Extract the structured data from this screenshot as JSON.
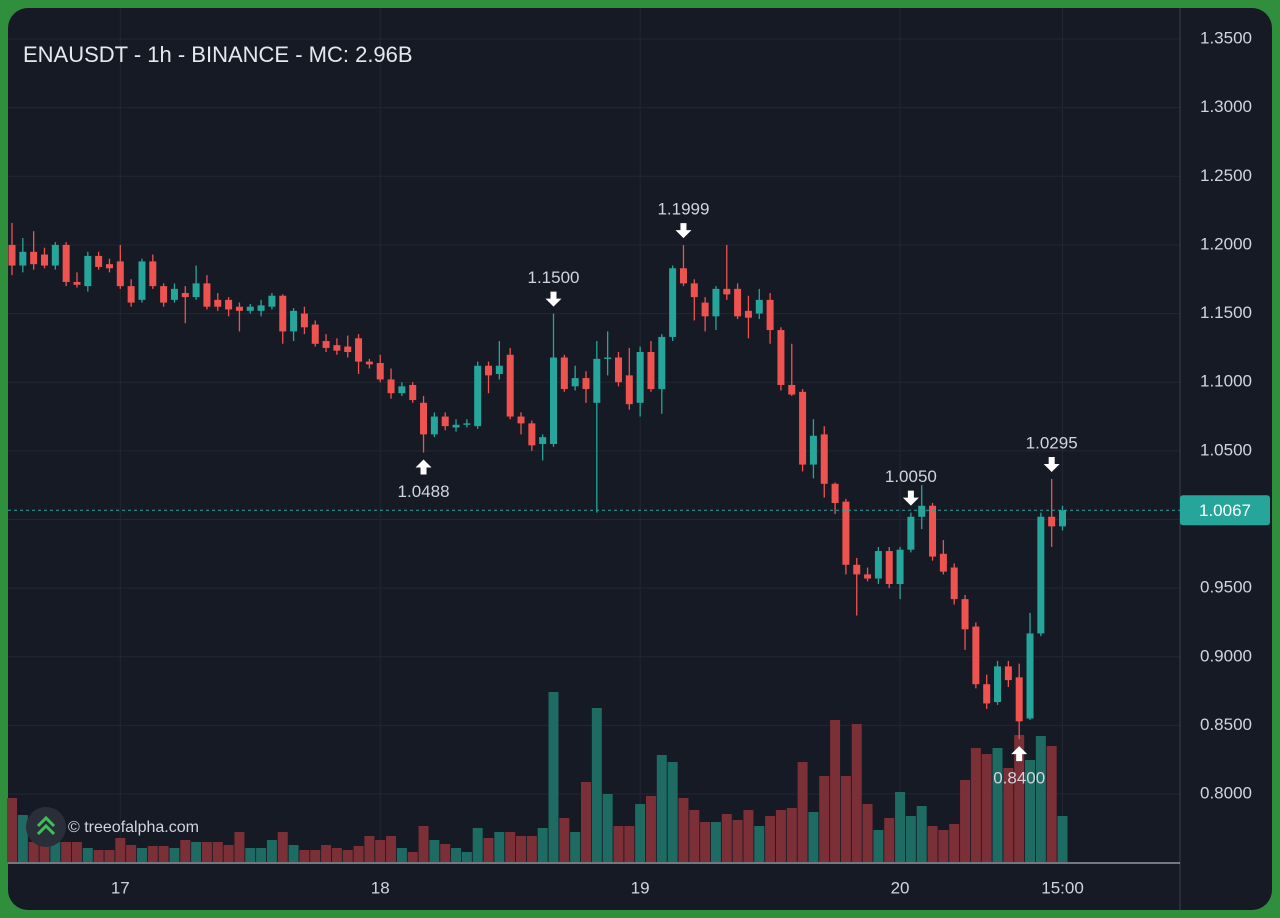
{
  "chart_data": {
    "type": "candlestick",
    "title": "ENAUSDT - 1h - BINANCE - MC: 2.96B",
    "watermark": "© treeofalpha.com",
    "categories": [
      null,
      null,
      null,
      null,
      null,
      null,
      null,
      null,
      null,
      null,
      "17",
      null,
      null,
      null,
      null,
      null,
      null,
      null,
      null,
      null,
      null,
      null,
      null,
      null,
      null,
      null,
      null,
      null,
      null,
      null,
      null,
      null,
      null,
      null,
      "18",
      null,
      null,
      null,
      null,
      null,
      null,
      null,
      null,
      null,
      null,
      null,
      null,
      null,
      null,
      null,
      null,
      null,
      null,
      null,
      null,
      null,
      null,
      null,
      "19",
      null,
      null,
      null,
      null,
      null,
      null,
      null,
      null,
      null,
      null,
      null,
      null,
      null,
      null,
      null,
      null,
      null,
      null,
      null,
      null,
      null,
      null,
      null,
      "20",
      null,
      null,
      null,
      null,
      null,
      null,
      null,
      null,
      null,
      null,
      null,
      null,
      null,
      null,
      "15:00"
    ],
    "open": [
      1.2,
      1.185,
      1.195,
      1.193,
      1.185,
      1.2,
      1.173,
      1.17,
      1.192,
      1.186,
      1.188,
      1.17,
      1.16,
      1.188,
      1.17,
      1.16,
      1.165,
      1.162,
      1.172,
      1.16,
      1.16,
      1.155,
      1.152,
      1.152,
      1.155,
      1.163,
      1.137,
      1.15,
      1.142,
      1.13,
      1.127,
      1.126,
      1.132,
      1.115,
      1.114,
      1.102,
      1.092,
      1.098,
      1.085,
      1.062,
      1.075,
      1.067,
      1.069,
      1.068,
      1.112,
      1.106,
      1.12,
      1.075,
      1.07,
      1.055,
      1.055,
      1.118,
      1.097,
      1.103,
      1.085,
      1.117,
      1.118,
      1.105,
      1.085,
      1.122,
      1.095,
      1.133,
      1.183,
      1.172,
      1.158,
      1.148,
      1.168,
      1.168,
      1.152,
      1.15,
      1.16,
      1.138,
      1.098,
      1.093,
      1.04,
      1.062,
      1.026,
      1.013,
      0.967,
      0.96,
      0.957,
      0.977,
      0.953,
      0.978,
      1.002,
      1.01,
      0.975,
      0.965,
      0.942,
      0.922,
      0.88,
      0.867,
      0.893,
      0.885,
      0.855,
      0.917,
      1.002,
      0.995
    ],
    "high": [
      1.216,
      1.205,
      1.21,
      1.198,
      1.202,
      1.202,
      1.18,
      1.195,
      1.195,
      1.19,
      1.2,
      1.175,
      1.19,
      1.193,
      1.172,
      1.172,
      1.17,
      1.185,
      1.178,
      1.165,
      1.162,
      1.158,
      1.157,
      1.16,
      1.165,
      1.164,
      1.154,
      1.155,
      1.145,
      1.135,
      1.132,
      1.134,
      1.135,
      1.117,
      1.12,
      1.11,
      1.1,
      1.1,
      1.09,
      1.078,
      1.078,
      1.073,
      1.073,
      1.115,
      1.115,
      1.13,
      1.125,
      1.078,
      1.072,
      1.062,
      1.15,
      1.12,
      1.112,
      1.108,
      1.13,
      1.137,
      1.122,
      1.125,
      1.126,
      1.13,
      1.135,
      1.185,
      1.1999,
      1.175,
      1.162,
      1.17,
      1.2,
      1.172,
      1.163,
      1.168,
      1.165,
      1.14,
      1.128,
      1.095,
      1.073,
      1.068,
      1.027,
      1.015,
      0.972,
      0.965,
      0.98,
      0.98,
      0.98,
      1.005,
      1.025,
      1.012,
      0.985,
      0.968,
      0.945,
      0.925,
      0.887,
      0.897,
      0.897,
      0.895,
      0.932,
      1.005,
      1.0295,
      1.01
    ],
    "low": [
      1.178,
      1.18,
      1.182,
      1.183,
      1.182,
      1.17,
      1.169,
      1.166,
      1.182,
      1.18,
      1.168,
      1.155,
      1.158,
      1.168,
      1.155,
      1.158,
      1.143,
      1.16,
      1.153,
      1.152,
      1.148,
      1.137,
      1.15,
      1.148,
      1.153,
      1.128,
      1.13,
      1.135,
      1.126,
      1.122,
      1.12,
      1.118,
      1.106,
      1.11,
      1.1,
      1.088,
      1.09,
      1.085,
      1.0488,
      1.06,
      1.065,
      1.064,
      1.067,
      1.066,
      1.092,
      1.102,
      1.073,
      1.062,
      1.05,
      1.043,
      1.053,
      1.093,
      1.094,
      1.085,
      1.005,
      1.105,
      1.097,
      1.08,
      1.075,
      1.093,
      1.077,
      1.13,
      1.17,
      1.145,
      1.137,
      1.138,
      1.16,
      1.146,
      1.132,
      1.146,
      1.128,
      1.094,
      1.09,
      1.035,
      1.03,
      1.016,
      1.004,
      0.96,
      0.93,
      0.955,
      0.953,
      0.95,
      0.942,
      0.976,
      0.993,
      0.97,
      0.96,
      0.938,
      0.905,
      0.877,
      0.862,
      0.865,
      0.878,
      0.84,
      0.854,
      0.915,
      0.98,
      0.992
    ],
    "close": [
      1.185,
      1.195,
      1.186,
      1.185,
      1.2,
      1.173,
      1.171,
      1.192,
      1.184,
      1.183,
      1.17,
      1.158,
      1.188,
      1.17,
      1.158,
      1.168,
      1.162,
      1.172,
      1.155,
      1.155,
      1.153,
      1.152,
      1.155,
      1.156,
      1.163,
      1.137,
      1.152,
      1.14,
      1.128,
      1.125,
      1.123,
      1.122,
      1.115,
      1.113,
      1.102,
      1.092,
      1.097,
      1.087,
      1.062,
      1.075,
      1.068,
      1.069,
      1.07,
      1.112,
      1.105,
      1.112,
      1.075,
      1.07,
      1.054,
      1.06,
      1.118,
      1.095,
      1.103,
      1.095,
      1.117,
      1.118,
      1.1,
      1.084,
      1.122,
      1.095,
      1.133,
      1.183,
      1.172,
      1.162,
      1.148,
      1.168,
      1.164,
      1.148,
      1.147,
      1.16,
      1.138,
      1.098,
      1.091,
      1.04,
      1.061,
      1.026,
      1.012,
      0.967,
      0.96,
      0.957,
      0.977,
      0.953,
      0.978,
      1.002,
      1.01,
      0.973,
      0.962,
      0.942,
      0.92,
      0.88,
      0.866,
      0.893,
      0.883,
      0.853,
      0.917,
      1.002,
      0.995,
      1.0067
    ],
    "volume": [
      64,
      47,
      20,
      24,
      20,
      20,
      20,
      14,
      12,
      12,
      24,
      17,
      14,
      16,
      16,
      14,
      22,
      20,
      20,
      20,
      17,
      30,
      14,
      14,
      22,
      30,
      17,
      12,
      12,
      17,
      14,
      12,
      16,
      26,
      22,
      26,
      14,
      10,
      36,
      22,
      18,
      14,
      10,
      34,
      24,
      30,
      30,
      26,
      26,
      34,
      170,
      44,
      30,
      80,
      154,
      68,
      36,
      36,
      58,
      66,
      107,
      100,
      64,
      52,
      40,
      40,
      48,
      42,
      52,
      36,
      46,
      52,
      54,
      100,
      50,
      86,
      142,
      86,
      138,
      58,
      32,
      44,
      70,
      46,
      56,
      36,
      32,
      38,
      82,
      114,
      108,
      114,
      94,
      127,
      102,
      126,
      116,
      46
    ],
    "up_color": "#26a69a",
    "down_color": "#ef5350",
    "volume_up_color": "#1d6b63",
    "volume_down_color": "#7b2f36",
    "ylim": [
      0.7505,
      1.3726
    ],
    "yticks": [
      {
        "value": 0.8,
        "label": "0.8000"
      },
      {
        "value": 0.85,
        "label": "0.8500"
      },
      {
        "value": 0.9,
        "label": "0.9000"
      },
      {
        "value": 0.95,
        "label": "0.9500"
      },
      {
        "value": 1.0,
        "label": "1.0000"
      },
      {
        "value": 1.05,
        "label": "1.0500"
      },
      {
        "value": 1.1,
        "label": "1.1000"
      },
      {
        "value": 1.15,
        "label": "1.1500"
      },
      {
        "value": 1.2,
        "label": "1.2000"
      },
      {
        "value": 1.25,
        "label": "1.2500"
      },
      {
        "value": 1.3,
        "label": "1.3000"
      },
      {
        "value": 1.35,
        "label": "1.3500"
      }
    ],
    "grid": true,
    "annotations": [
      {
        "value": 1.1999,
        "label": "1.1999"
      },
      {
        "value": 1.15,
        "label": "1.1500"
      },
      {
        "value": 1.0488,
        "label": "1.0488"
      },
      {
        "value": 1.005,
        "label": "1.0050"
      },
      {
        "value": 1.0295,
        "label": "1.0295"
      },
      {
        "value": 0.84,
        "label": "0.8400"
      }
    ],
    "last_price": {
      "value": 1.0067,
      "label": "1.0067"
    }
  }
}
